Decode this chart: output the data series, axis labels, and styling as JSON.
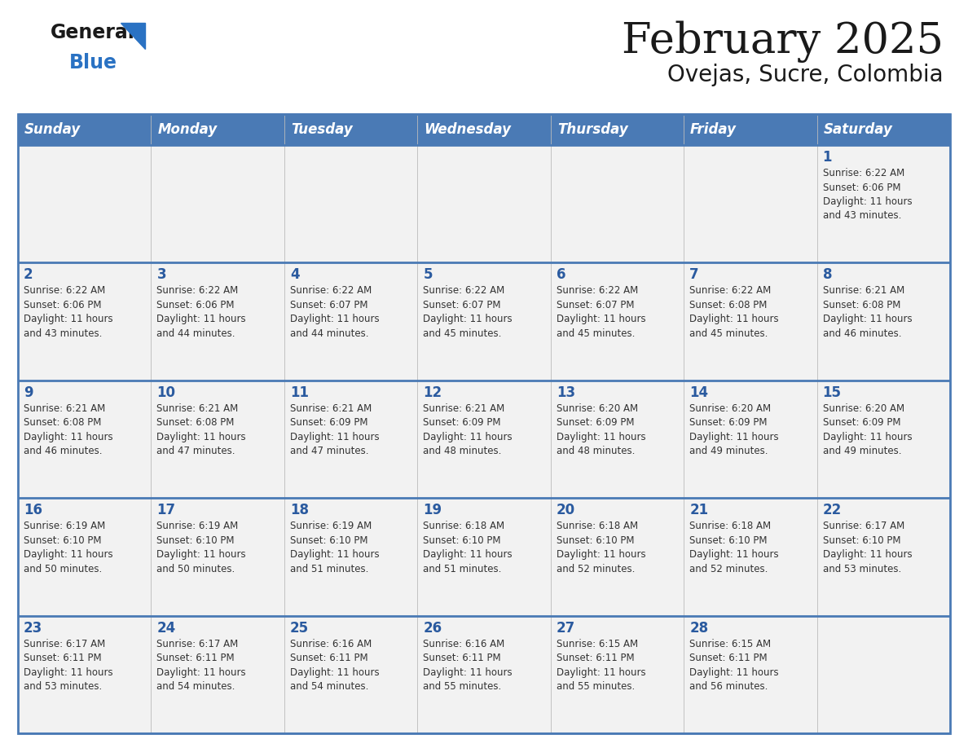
{
  "title": "February 2025",
  "subtitle": "Ovejas, Sucre, Colombia",
  "header_bg": "#4a7ab5",
  "header_text_color": "#ffffff",
  "day_names": [
    "Sunday",
    "Monday",
    "Tuesday",
    "Wednesday",
    "Thursday",
    "Friday",
    "Saturday"
  ],
  "row_bg_light": "#f2f2f2",
  "row_bg_white": "#ffffff",
  "cell_border_color": "#4a7ab5",
  "date_color": "#2a5a9f",
  "info_color": "#333333",
  "logo_general_color": "#1a1a1a",
  "logo_blue_color": "#2a72c3",
  "logo_triangle_color": "#2a72c3",
  "calendar": [
    [
      {
        "day": null,
        "sunrise": null,
        "sunset": null,
        "daylight": null
      },
      {
        "day": null,
        "sunrise": null,
        "sunset": null,
        "daylight": null
      },
      {
        "day": null,
        "sunrise": null,
        "sunset": null,
        "daylight": null
      },
      {
        "day": null,
        "sunrise": null,
        "sunset": null,
        "daylight": null
      },
      {
        "day": null,
        "sunrise": null,
        "sunset": null,
        "daylight": null
      },
      {
        "day": null,
        "sunrise": null,
        "sunset": null,
        "daylight": null
      },
      {
        "day": 1,
        "sunrise": "6:22 AM",
        "sunset": "6:06 PM",
        "daylight": "11 hours\nand 43 minutes."
      }
    ],
    [
      {
        "day": 2,
        "sunrise": "6:22 AM",
        "sunset": "6:06 PM",
        "daylight": "11 hours\nand 43 minutes."
      },
      {
        "day": 3,
        "sunrise": "6:22 AM",
        "sunset": "6:06 PM",
        "daylight": "11 hours\nand 44 minutes."
      },
      {
        "day": 4,
        "sunrise": "6:22 AM",
        "sunset": "6:07 PM",
        "daylight": "11 hours\nand 44 minutes."
      },
      {
        "day": 5,
        "sunrise": "6:22 AM",
        "sunset": "6:07 PM",
        "daylight": "11 hours\nand 45 minutes."
      },
      {
        "day": 6,
        "sunrise": "6:22 AM",
        "sunset": "6:07 PM",
        "daylight": "11 hours\nand 45 minutes."
      },
      {
        "day": 7,
        "sunrise": "6:22 AM",
        "sunset": "6:08 PM",
        "daylight": "11 hours\nand 45 minutes."
      },
      {
        "day": 8,
        "sunrise": "6:21 AM",
        "sunset": "6:08 PM",
        "daylight": "11 hours\nand 46 minutes."
      }
    ],
    [
      {
        "day": 9,
        "sunrise": "6:21 AM",
        "sunset": "6:08 PM",
        "daylight": "11 hours\nand 46 minutes."
      },
      {
        "day": 10,
        "sunrise": "6:21 AM",
        "sunset": "6:08 PM",
        "daylight": "11 hours\nand 47 minutes."
      },
      {
        "day": 11,
        "sunrise": "6:21 AM",
        "sunset": "6:09 PM",
        "daylight": "11 hours\nand 47 minutes."
      },
      {
        "day": 12,
        "sunrise": "6:21 AM",
        "sunset": "6:09 PM",
        "daylight": "11 hours\nand 48 minutes."
      },
      {
        "day": 13,
        "sunrise": "6:20 AM",
        "sunset": "6:09 PM",
        "daylight": "11 hours\nand 48 minutes."
      },
      {
        "day": 14,
        "sunrise": "6:20 AM",
        "sunset": "6:09 PM",
        "daylight": "11 hours\nand 49 minutes."
      },
      {
        "day": 15,
        "sunrise": "6:20 AM",
        "sunset": "6:09 PM",
        "daylight": "11 hours\nand 49 minutes."
      }
    ],
    [
      {
        "day": 16,
        "sunrise": "6:19 AM",
        "sunset": "6:10 PM",
        "daylight": "11 hours\nand 50 minutes."
      },
      {
        "day": 17,
        "sunrise": "6:19 AM",
        "sunset": "6:10 PM",
        "daylight": "11 hours\nand 50 minutes."
      },
      {
        "day": 18,
        "sunrise": "6:19 AM",
        "sunset": "6:10 PM",
        "daylight": "11 hours\nand 51 minutes."
      },
      {
        "day": 19,
        "sunrise": "6:18 AM",
        "sunset": "6:10 PM",
        "daylight": "11 hours\nand 51 minutes."
      },
      {
        "day": 20,
        "sunrise": "6:18 AM",
        "sunset": "6:10 PM",
        "daylight": "11 hours\nand 52 minutes."
      },
      {
        "day": 21,
        "sunrise": "6:18 AM",
        "sunset": "6:10 PM",
        "daylight": "11 hours\nand 52 minutes."
      },
      {
        "day": 22,
        "sunrise": "6:17 AM",
        "sunset": "6:10 PM",
        "daylight": "11 hours\nand 53 minutes."
      }
    ],
    [
      {
        "day": 23,
        "sunrise": "6:17 AM",
        "sunset": "6:11 PM",
        "daylight": "11 hours\nand 53 minutes."
      },
      {
        "day": 24,
        "sunrise": "6:17 AM",
        "sunset": "6:11 PM",
        "daylight": "11 hours\nand 54 minutes."
      },
      {
        "day": 25,
        "sunrise": "6:16 AM",
        "sunset": "6:11 PM",
        "daylight": "11 hours\nand 54 minutes."
      },
      {
        "day": 26,
        "sunrise": "6:16 AM",
        "sunset": "6:11 PM",
        "daylight": "11 hours\nand 55 minutes."
      },
      {
        "day": 27,
        "sunrise": "6:15 AM",
        "sunset": "6:11 PM",
        "daylight": "11 hours\nand 55 minutes."
      },
      {
        "day": 28,
        "sunrise": "6:15 AM",
        "sunset": "6:11 PM",
        "daylight": "11 hours\nand 56 minutes."
      },
      {
        "day": null,
        "sunrise": null,
        "sunset": null,
        "daylight": null
      }
    ]
  ]
}
